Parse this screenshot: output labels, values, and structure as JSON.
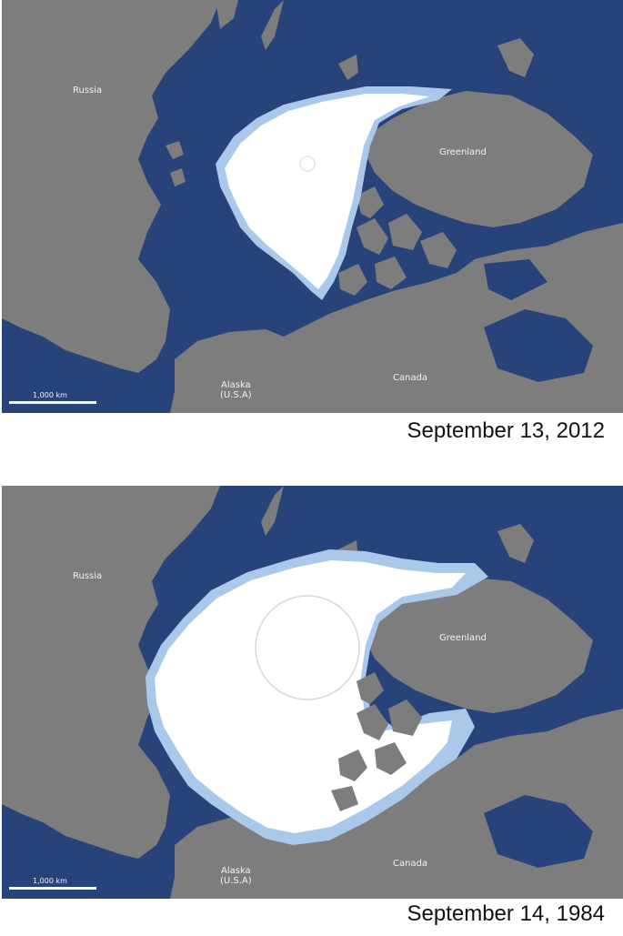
{
  "panels": [
    {
      "id": "2012",
      "caption": "September 13, 2012",
      "labels": {
        "russia": "Russia",
        "greenland": "Greenland",
        "alaska_line1": "Alaska",
        "alaska_line2": "(U.S.A)",
        "canada": "Canada"
      },
      "scale_label": "1,000 km"
    },
    {
      "id": "1984",
      "caption": "September 14, 1984",
      "labels": {
        "russia": "Russia",
        "greenland": "Greenland",
        "alaska_line1": "Alaska",
        "alaska_line2": "(U.S.A)",
        "canada": "Canada"
      },
      "scale_label": "1,000 km"
    }
  ],
  "colors": {
    "ocean": "#27437a",
    "land": "#7d7d7d",
    "ice": "#ffffff",
    "ice_edge": "#a9c8ea"
  }
}
